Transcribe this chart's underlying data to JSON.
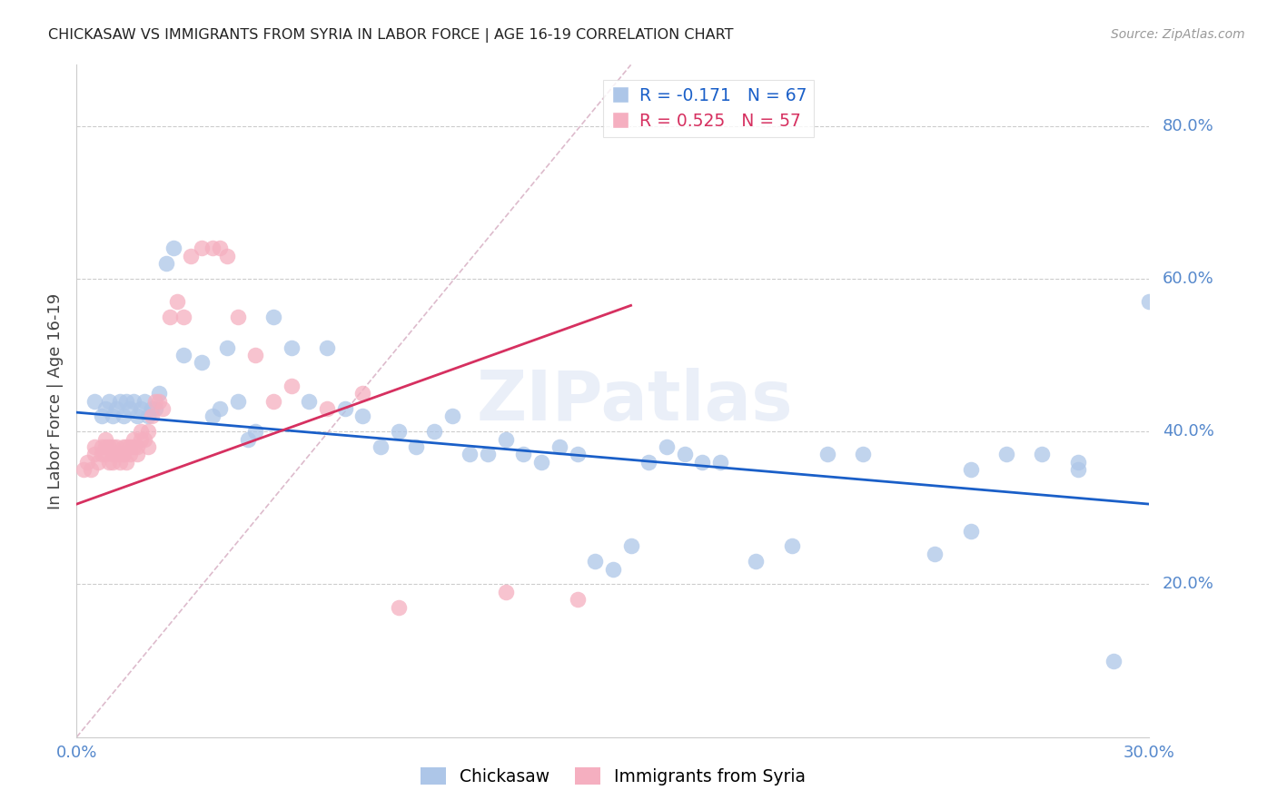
{
  "title": "CHICKASAW VS IMMIGRANTS FROM SYRIA IN LABOR FORCE | AGE 16-19 CORRELATION CHART",
  "source": "Source: ZipAtlas.com",
  "ylabel": "In Labor Force | Age 16-19",
  "legend_labels": [
    "Chickasaw",
    "Immigrants from Syria"
  ],
  "r_chickasaw": -0.171,
  "n_chickasaw": 67,
  "r_syria": 0.525,
  "n_syria": 57,
  "color_chickasaw": "#adc6e8",
  "color_syria": "#f5afc0",
  "line_color_chickasaw": "#1a5fc8",
  "line_color_syria": "#d63060",
  "xmin": 0.0,
  "xmax": 0.3,
  "ymin": 0.0,
  "ymax": 0.88,
  "right_yticks": [
    0.2,
    0.4,
    0.6,
    0.8
  ],
  "right_yticklabels": [
    "20.0%",
    "40.0%",
    "60.0%",
    "80.0%"
  ],
  "watermark": "ZIPatlas",
  "chickasaw_x": [
    0.005,
    0.007,
    0.008,
    0.009,
    0.01,
    0.011,
    0.012,
    0.013,
    0.014,
    0.015,
    0.016,
    0.017,
    0.018,
    0.019,
    0.02,
    0.021,
    0.022,
    0.023,
    0.025,
    0.027,
    0.03,
    0.035,
    0.038,
    0.04,
    0.042,
    0.045,
    0.048,
    0.05,
    0.055,
    0.06,
    0.065,
    0.07,
    0.075,
    0.08,
    0.085,
    0.09,
    0.095,
    0.1,
    0.105,
    0.11,
    0.115,
    0.12,
    0.125,
    0.13,
    0.135,
    0.14,
    0.145,
    0.15,
    0.155,
    0.16,
    0.165,
    0.17,
    0.175,
    0.18,
    0.19,
    0.2,
    0.21,
    0.22,
    0.24,
    0.25,
    0.26,
    0.27,
    0.28,
    0.29,
    0.3,
    0.25,
    0.28
  ],
  "chickasaw_y": [
    0.44,
    0.42,
    0.43,
    0.44,
    0.42,
    0.43,
    0.44,
    0.42,
    0.44,
    0.43,
    0.44,
    0.42,
    0.43,
    0.44,
    0.42,
    0.43,
    0.43,
    0.45,
    0.62,
    0.64,
    0.5,
    0.49,
    0.42,
    0.43,
    0.51,
    0.44,
    0.39,
    0.4,
    0.55,
    0.51,
    0.44,
    0.51,
    0.43,
    0.42,
    0.38,
    0.4,
    0.38,
    0.4,
    0.42,
    0.37,
    0.37,
    0.39,
    0.37,
    0.36,
    0.38,
    0.37,
    0.23,
    0.22,
    0.25,
    0.36,
    0.38,
    0.37,
    0.36,
    0.36,
    0.23,
    0.25,
    0.37,
    0.37,
    0.24,
    0.27,
    0.37,
    0.37,
    0.36,
    0.1,
    0.57,
    0.35,
    0.35
  ],
  "syria_x": [
    0.002,
    0.003,
    0.004,
    0.005,
    0.005,
    0.006,
    0.007,
    0.007,
    0.008,
    0.008,
    0.008,
    0.009,
    0.009,
    0.01,
    0.01,
    0.01,
    0.011,
    0.011,
    0.012,
    0.012,
    0.013,
    0.013,
    0.013,
    0.014,
    0.014,
    0.015,
    0.015,
    0.016,
    0.016,
    0.017,
    0.017,
    0.018,
    0.018,
    0.019,
    0.02,
    0.02,
    0.021,
    0.022,
    0.023,
    0.024,
    0.026,
    0.028,
    0.03,
    0.032,
    0.035,
    0.038,
    0.04,
    0.042,
    0.045,
    0.05,
    0.055,
    0.06,
    0.07,
    0.08,
    0.09,
    0.12,
    0.14
  ],
  "syria_y": [
    0.35,
    0.36,
    0.35,
    0.37,
    0.38,
    0.36,
    0.37,
    0.38,
    0.37,
    0.38,
    0.39,
    0.36,
    0.38,
    0.36,
    0.37,
    0.38,
    0.37,
    0.38,
    0.36,
    0.37,
    0.37,
    0.38,
    0.37,
    0.38,
    0.36,
    0.37,
    0.38,
    0.38,
    0.39,
    0.37,
    0.38,
    0.39,
    0.4,
    0.39,
    0.38,
    0.4,
    0.42,
    0.44,
    0.44,
    0.43,
    0.55,
    0.57,
    0.55,
    0.63,
    0.64,
    0.64,
    0.64,
    0.63,
    0.55,
    0.5,
    0.44,
    0.46,
    0.43,
    0.45,
    0.17,
    0.19,
    0.18
  ],
  "ref_line_x": [
    0.0,
    0.155
  ],
  "ref_line_y": [
    0.0,
    0.88
  ],
  "chickasaw_trend_x": [
    0.0,
    0.3
  ],
  "chickasaw_trend_y": [
    0.425,
    0.305
  ],
  "syria_trend_x": [
    0.0,
    0.155
  ],
  "syria_trend_y": [
    0.305,
    0.565
  ]
}
